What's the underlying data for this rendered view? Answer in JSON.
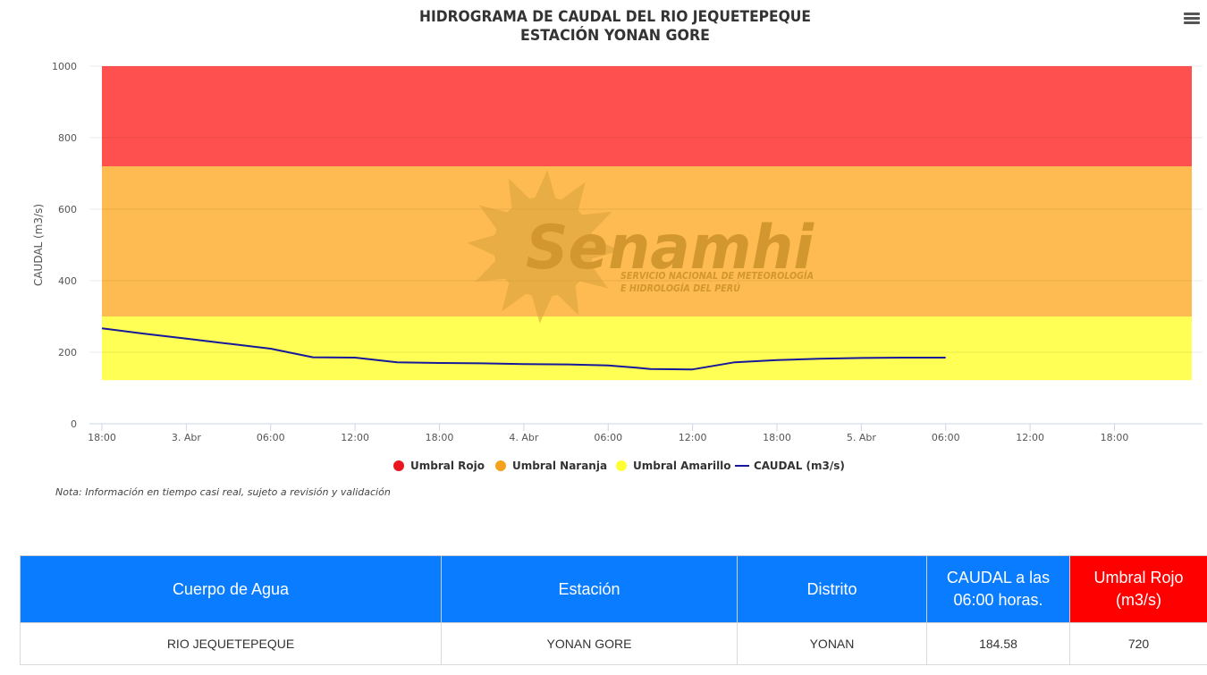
{
  "chart_data": {
    "type": "line",
    "title": "HIDROGRAMA DE CAUDAL DEL RIO JEQUETEPEQUE",
    "subtitle": "ESTACIÓN YONAN GORE",
    "ylabel": "CAUDAL (m3/s)",
    "ylim": [
      0,
      1000
    ],
    "yticks": [
      0,
      200,
      400,
      600,
      800,
      1000
    ],
    "x_tick_labels": [
      "18:00",
      "3. Abr",
      "06:00",
      "12:00",
      "18:00",
      "4. Abr",
      "06:00",
      "12:00",
      "18:00",
      "5. Abr",
      "06:00",
      "12:00",
      "18:00"
    ],
    "bands": [
      {
        "name": "Umbral Rojo",
        "from": 720,
        "to": 1000,
        "color": "#ff5050"
      },
      {
        "name": "Umbral Naranja",
        "from": 300,
        "to": 720,
        "color": "#fdbb51"
      },
      {
        "name": "Umbral Amarillo",
        "from": 122,
        "to": 300,
        "color": "#ffff55"
      }
    ],
    "legend": [
      {
        "name": "Umbral Rojo",
        "color": "#e8171f",
        "symbol": "dot"
      },
      {
        "name": "Umbral Naranja",
        "color": "#f5a31f",
        "symbol": "dot"
      },
      {
        "name": "Umbral Amarillo",
        "color": "#ffff33",
        "symbol": "dot"
      },
      {
        "name": "CAUDAL (m3/s)",
        "color": "#16199a",
        "symbol": "line"
      }
    ],
    "legend_position": "bottom-center",
    "grid": true,
    "series": [
      {
        "name": "CAUDAL (m3/s)",
        "color": "#16199a",
        "x_hours": [
          0,
          3,
          6,
          9,
          12,
          15,
          18,
          21,
          24,
          27,
          30,
          33,
          36,
          38,
          39,
          42,
          45,
          48,
          51,
          54,
          57,
          60
        ],
        "values": [
          267,
          252,
          238,
          224,
          210,
          186,
          185,
          172,
          170,
          169,
          167,
          166,
          163,
          157,
          153,
          152,
          172,
          178,
          182,
          184,
          185,
          185
        ]
      }
    ],
    "x_range_hours": [
      0,
      77.5
    ]
  },
  "watermark": {
    "brand": "Senamhi",
    "tagline_1": "SERVICIO NACIONAL DE METEOROLOGÍA",
    "tagline_2": "E HIDROLOGÍA DEL PERÚ"
  },
  "menu_icon": "hamburger-menu-icon",
  "note": "Nota: Información en tiempo casi real, sujeto a revisión y validación",
  "table": {
    "headers": [
      "Cuerpo de Agua",
      "Estación",
      "Distrito",
      "CAUDAL a las 06:00 horas.",
      "Umbral Rojo (m3/s)"
    ],
    "rows": [
      [
        "RIO JEQUETEPEQUE",
        "YONAN GORE",
        "YONAN",
        "184.58",
        "720"
      ]
    ],
    "header_color": "#0a7cff",
    "alert_header_color": "#ff0000"
  }
}
